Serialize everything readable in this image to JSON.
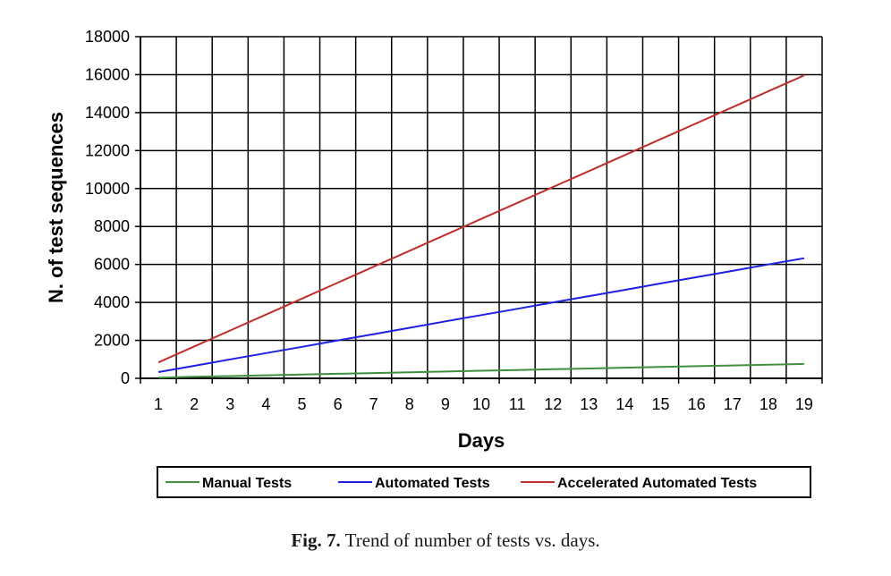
{
  "chart_data": {
    "type": "line",
    "xlabel": "Days",
    "ylabel": "N. of test sequences",
    "x": [
      1,
      2,
      3,
      4,
      5,
      6,
      7,
      8,
      9,
      10,
      11,
      12,
      13,
      14,
      15,
      16,
      17,
      18,
      19
    ],
    "x_tick_labels": [
      "1",
      "2",
      "3",
      "4",
      "5",
      "6",
      "7",
      "8",
      "9",
      "10",
      "11",
      "12",
      "13",
      "14",
      "15",
      "16",
      "17",
      "18",
      "19"
    ],
    "ylim": [
      0,
      18000
    ],
    "y_ticks": [
      0,
      2000,
      4000,
      6000,
      8000,
      10000,
      12000,
      14000,
      16000,
      18000
    ],
    "y_tick_labels": [
      "0",
      "2000",
      "4000",
      "6000",
      "8000",
      "10000",
      "12000",
      "14000",
      "16000",
      "18000"
    ],
    "grid": true,
    "legend_position": "bottom",
    "series": [
      {
        "name": "Manual Tests",
        "color": "#3f8f3f",
        "values": [
          40,
          80,
          120,
          160,
          200,
          240,
          280,
          320,
          360,
          400,
          440,
          480,
          520,
          560,
          600,
          640,
          680,
          720,
          760
        ]
      },
      {
        "name": "Automated Tests",
        "color": "#1f1fe0",
        "values": [
          330,
          660,
          1000,
          1330,
          1660,
          2000,
          2330,
          2660,
          3000,
          3330,
          3660,
          4000,
          4330,
          4660,
          5000,
          5330,
          5660,
          6000,
          6330
        ]
      },
      {
        "name": "Accelerated Automated Tests",
        "color": "#c0302a",
        "values": [
          840,
          1680,
          2520,
          3360,
          4200,
          5040,
          5880,
          6720,
          7560,
          8400,
          9240,
          10080,
          10920,
          11760,
          12600,
          13440,
          14280,
          15120,
          15960
        ]
      }
    ]
  },
  "caption": {
    "label": "Fig. 7.",
    "text": " Trend of number of tests vs. days."
  }
}
